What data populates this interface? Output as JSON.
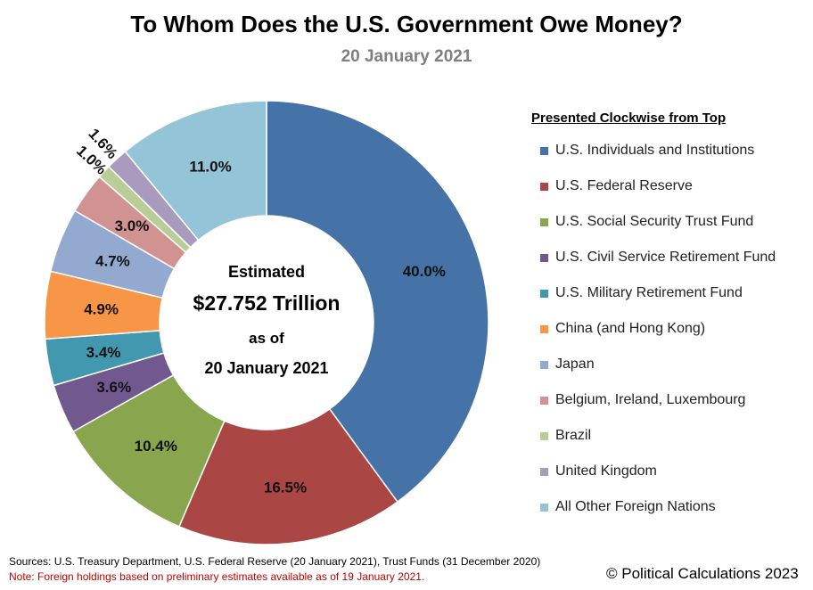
{
  "chart_data": {
    "type": "pie",
    "donut": true,
    "title": "To Whom Does the U.S. Government Owe Money?",
    "subtitle": "20 January 2021",
    "center_text": [
      "Estimated",
      "$27.752 Trillion",
      "as of",
      "20 January  2021"
    ],
    "legend_title": "Presented Clockwise from Top",
    "legend_position": "right",
    "categories": [
      "U.S. Individuals and Institutions",
      "U.S. Federal Reserve",
      "U.S. Social Security Trust Fund",
      "U.S. Civil Service Retirement Fund",
      "U.S. Military Retirement Fund",
      "China (and Hong Kong)",
      "Japan",
      "Belgium, Ireland, Luxembourg",
      "Brazil",
      "United Kingdom",
      "All Other Foreign Nations"
    ],
    "values": [
      40.0,
      16.5,
      10.4,
      3.6,
      3.4,
      4.9,
      4.7,
      3.0,
      1.0,
      1.6,
      11.0
    ],
    "labels": [
      "40.0%",
      "16.5%",
      "10.4%",
      "3.6%",
      "3.4%",
      "4.9%",
      "4.7%",
      "3.0%",
      "1.0%",
      "1.6%",
      "11.0%"
    ],
    "colors": [
      "#4572A7",
      "#AA4643",
      "#89A54E",
      "#71588F",
      "#4198AF",
      "#F79646",
      "#93A9CF",
      "#D19392",
      "#B9CD96",
      "#A99BBD",
      "#93C4D7"
    ]
  },
  "footer": {
    "sources": "Sources: U.S. Treasury Department, U.S. Federal Reserve (20 January 2021),  Trust Funds (31 December 2020)",
    "note": "Note: Foreign holdings based on preliminary estimates available as of 19 January 2021.",
    "copyright": "© Political Calculations 2023"
  }
}
